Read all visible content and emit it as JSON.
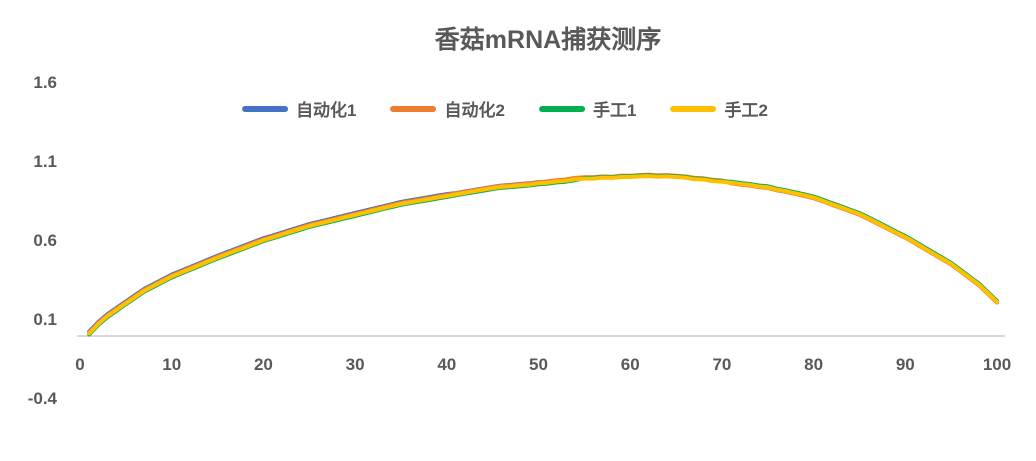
{
  "chart_data": {
    "type": "line",
    "title": "香菇mRNA捕获测序",
    "title_color": "#595959",
    "label_color": "#595959",
    "axis_color": "#D9D9D9",
    "background": "#FFFFFF",
    "grid": false,
    "legend_position": "top",
    "xlabel": "",
    "ylabel": "",
    "xlim": [
      0,
      100
    ],
    "ylim": [
      -0.4,
      1.6
    ],
    "x_ticks": [
      "0",
      "10",
      "20",
      "30",
      "40",
      "50",
      "60",
      "70",
      "80",
      "90",
      "100"
    ],
    "y_ticks": [
      "1.6",
      "1.1",
      "0.6",
      "0.1",
      "-0.4"
    ],
    "x": [
      1,
      2,
      3,
      4,
      5,
      6,
      7,
      8,
      9,
      10,
      11,
      12,
      13,
      14,
      15,
      16,
      17,
      18,
      19,
      20,
      21,
      22,
      23,
      24,
      25,
      26,
      27,
      28,
      29,
      30,
      31,
      32,
      33,
      34,
      35,
      36,
      37,
      38,
      39,
      40,
      41,
      42,
      43,
      44,
      45,
      46,
      47,
      48,
      49,
      50,
      51,
      52,
      53,
      54,
      55,
      56,
      57,
      58,
      59,
      60,
      61,
      62,
      63,
      64,
      65,
      66,
      67,
      68,
      69,
      70,
      71,
      72,
      73,
      74,
      75,
      76,
      77,
      78,
      79,
      80,
      81,
      82,
      83,
      84,
      85,
      86,
      87,
      88,
      89,
      90,
      91,
      92,
      93,
      94,
      95,
      96,
      97,
      98,
      99,
      100
    ],
    "series": [
      {
        "name": "自动化1",
        "color": "#4472C4",
        "values": [
          0.022,
          0.082,
          0.132,
          0.172,
          0.212,
          0.252,
          0.292,
          0.322,
          0.352,
          0.382,
          0.406,
          0.43,
          0.454,
          0.478,
          0.502,
          0.524,
          0.546,
          0.568,
          0.59,
          0.612,
          0.63,
          0.648,
          0.666,
          0.684,
          0.702,
          0.716,
          0.73,
          0.744,
          0.758,
          0.772,
          0.786,
          0.8,
          0.814,
          0.828,
          0.842,
          0.852,
          0.862,
          0.872,
          0.882,
          0.892,
          0.898,
          0.908,
          0.918,
          0.928,
          0.938,
          0.946,
          0.95,
          0.956,
          0.96,
          0.968,
          0.966,
          0.974,
          0.978,
          0.988,
          0.992,
          0.992,
          0.998,
          0.996,
          1.002,
          1.002,
          1.006,
          1.008,
          1.004,
          1.006,
          1.002,
          0.998,
          0.988,
          0.986,
          0.976,
          0.972,
          0.966,
          0.958,
          0.952,
          0.942,
          0.937,
          0.922,
          0.912,
          0.899,
          0.89,
          0.876,
          0.856,
          0.834,
          0.814,
          0.792,
          0.771,
          0.743,
          0.714,
          0.684,
          0.654,
          0.626,
          0.592,
          0.558,
          0.524,
          0.49,
          0.456,
          0.413,
          0.369,
          0.326,
          0.271,
          0.216
        ]
      },
      {
        "name": "自动化2",
        "color": "#ED7D31",
        "values": [
          0.016,
          0.076,
          0.126,
          0.166,
          0.206,
          0.246,
          0.286,
          0.316,
          0.346,
          0.376,
          0.4,
          0.424,
          0.448,
          0.472,
          0.496,
          0.518,
          0.54,
          0.562,
          0.584,
          0.606,
          0.624,
          0.642,
          0.66,
          0.678,
          0.696,
          0.71,
          0.724,
          0.738,
          0.752,
          0.766,
          0.78,
          0.794,
          0.808,
          0.822,
          0.836,
          0.846,
          0.856,
          0.866,
          0.876,
          0.886,
          0.896,
          0.906,
          0.916,
          0.926,
          0.936,
          0.944,
          0.948,
          0.954,
          0.958,
          0.966,
          0.972,
          0.98,
          0.984,
          0.994,
          0.998,
          0.998,
          1.004,
          1.002,
          1.008,
          1.008,
          1.012,
          1.014,
          1.01,
          1.012,
          1.008,
          1.004,
          0.994,
          0.992,
          0.982,
          0.978,
          0.96,
          0.952,
          0.946,
          0.936,
          0.931,
          0.916,
          0.906,
          0.893,
          0.88,
          0.866,
          0.846,
          0.824,
          0.804,
          0.782,
          0.761,
          0.733,
          0.704,
          0.674,
          0.644,
          0.616,
          0.582,
          0.548,
          0.514,
          0.48,
          0.446,
          0.403,
          0.359,
          0.316,
          0.261,
          0.206
        ]
      },
      {
        "name": "手工1",
        "color": "#00B050",
        "values": [
          0.004,
          0.064,
          0.114,
          0.154,
          0.194,
          0.234,
          0.274,
          0.304,
          0.334,
          0.364,
          0.388,
          0.412,
          0.436,
          0.46,
          0.484,
          0.506,
          0.528,
          0.55,
          0.572,
          0.594,
          0.612,
          0.63,
          0.648,
          0.666,
          0.684,
          0.698,
          0.712,
          0.726,
          0.74,
          0.754,
          0.768,
          0.782,
          0.796,
          0.81,
          0.824,
          0.834,
          0.844,
          0.854,
          0.864,
          0.874,
          0.884,
          0.894,
          0.904,
          0.914,
          0.924,
          0.932,
          0.936,
          0.942,
          0.946,
          0.954,
          0.958,
          0.966,
          0.97,
          0.98,
          0.994,
          0.994,
          1.0,
          0.998,
          1.004,
          1.004,
          1.008,
          1.01,
          1.006,
          1.008,
          1.004,
          1.0,
          0.99,
          0.988,
          0.978,
          0.974,
          0.97,
          0.962,
          0.956,
          0.946,
          0.941,
          0.926,
          0.916,
          0.903,
          0.89,
          0.876,
          0.856,
          0.834,
          0.814,
          0.792,
          0.771,
          0.743,
          0.714,
          0.684,
          0.654,
          0.626,
          0.592,
          0.558,
          0.524,
          0.49,
          0.456,
          0.413,
          0.369,
          0.326,
          0.271,
          0.216
        ]
      },
      {
        "name": "手工2",
        "color": "#FFC000",
        "values": [
          0.01,
          0.07,
          0.12,
          0.16,
          0.2,
          0.24,
          0.28,
          0.31,
          0.34,
          0.37,
          0.394,
          0.418,
          0.442,
          0.466,
          0.49,
          0.512,
          0.534,
          0.556,
          0.578,
          0.6,
          0.618,
          0.636,
          0.654,
          0.672,
          0.69,
          0.704,
          0.718,
          0.732,
          0.746,
          0.76,
          0.774,
          0.788,
          0.802,
          0.816,
          0.83,
          0.84,
          0.85,
          0.86,
          0.87,
          0.88,
          0.89,
          0.9,
          0.91,
          0.92,
          0.93,
          0.938,
          0.942,
          0.948,
          0.952,
          0.96,
          0.964,
          0.972,
          0.976,
          0.986,
          0.99,
          0.99,
          0.996,
          0.994,
          1.0,
          1.0,
          1.004,
          1.006,
          1.002,
          1.004,
          1.0,
          0.996,
          0.986,
          0.984,
          0.974,
          0.97,
          0.964,
          0.956,
          0.95,
          0.94,
          0.935,
          0.92,
          0.91,
          0.897,
          0.884,
          0.87,
          0.85,
          0.828,
          0.808,
          0.786,
          0.765,
          0.737,
          0.708,
          0.678,
          0.648,
          0.62,
          0.586,
          0.552,
          0.518,
          0.484,
          0.45,
          0.407,
          0.363,
          0.32,
          0.265,
          0.21
        ]
      }
    ]
  }
}
